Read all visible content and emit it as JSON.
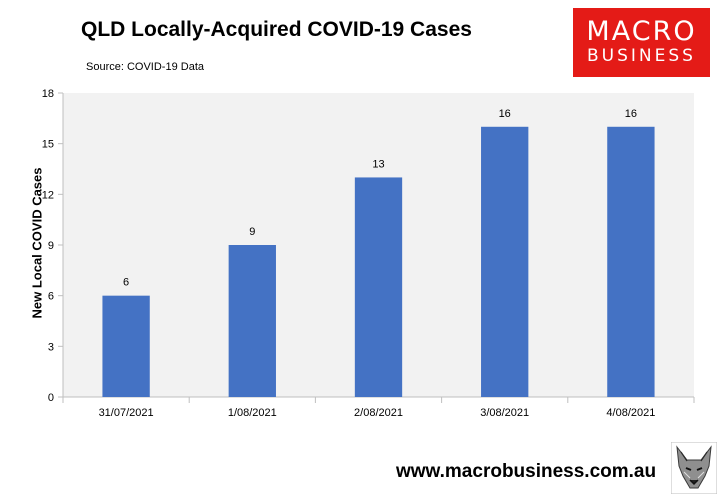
{
  "chart_data": {
    "type": "bar",
    "title": "QLD Locally-Acquired COVID-19 Cases",
    "subtitle": "Source: COVID-19 Data",
    "ylabel": "New Local COVID Cases",
    "categories": [
      "31/07/2021",
      "1/08/2021",
      "2/08/2021",
      "3/08/2021",
      "4/08/2021"
    ],
    "values": [
      6,
      9,
      13,
      16,
      16
    ],
    "data_labels": [
      "6",
      "9",
      "13",
      "16",
      "16"
    ],
    "ylim": [
      0,
      18
    ],
    "yticks": [
      0,
      3,
      6,
      9,
      12,
      15,
      18
    ],
    "bar_color": "#4472c4",
    "plot_background": "#f2f2f2",
    "grid": false,
    "legend": false
  },
  "logo": {
    "line1": "MACRO",
    "line2": "BUSINESS",
    "color": "#e41b17"
  },
  "footer": {
    "url": "www.macrobusiness.com.au",
    "icon": "fox-icon"
  }
}
